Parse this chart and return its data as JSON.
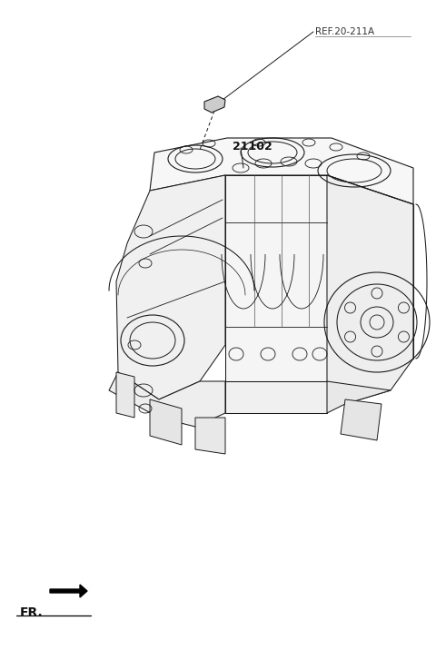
{
  "bg_color": "#ffffff",
  "line_color": "#1a1a1a",
  "ref_label": "REF.20-211A",
  "part_label": "21102",
  "fr_label": "FR.",
  "fig_width": 4.8,
  "fig_height": 7.16,
  "dpi": 100
}
